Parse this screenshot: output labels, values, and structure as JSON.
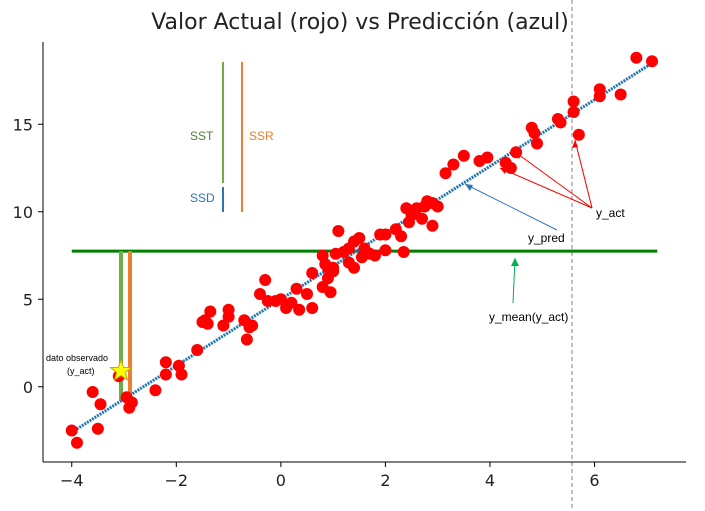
{
  "chart_data": {
    "type": "scatter",
    "title": "Valor Actual (rojo) vs Predicción (azul)",
    "xlabel": "",
    "ylabel": "",
    "xlim": [
      -4.55,
      7.75
    ],
    "ylim": [
      -4.3,
      19.7
    ],
    "xticks": [
      -4,
      -2,
      0,
      2,
      4,
      6
    ],
    "xtick_labels": [
      "−4",
      "−2",
      "0",
      "2",
      "4",
      "6"
    ],
    "yticks": [
      0,
      5,
      10,
      15
    ],
    "ytick_labels": [
      "0",
      "5",
      "10",
      "15"
    ],
    "grid": false,
    "series": [
      {
        "kind": "points",
        "color": "#ff0000",
        "points": [
          [
            -4.0,
            -2.5
          ],
          [
            -3.9,
            -3.2
          ],
          [
            -3.6,
            -0.3
          ],
          [
            -3.5,
            -2.4
          ],
          [
            -3.45,
            -1.0
          ],
          [
            -3.1,
            0.6
          ],
          [
            -2.95,
            -0.6
          ],
          [
            -2.9,
            -1.2
          ],
          [
            -2.85,
            -0.9
          ],
          [
            -2.4,
            -0.2
          ],
          [
            -2.2,
            1.4
          ],
          [
            -2.2,
            0.7
          ],
          [
            -1.95,
            1.2
          ],
          [
            -1.9,
            0.7
          ],
          [
            -1.6,
            2.1
          ],
          [
            -1.5,
            3.7
          ],
          [
            -1.45,
            3.8
          ],
          [
            -1.4,
            3.6
          ],
          [
            -1.35,
            4.3
          ],
          [
            -1.1,
            3.5
          ],
          [
            -1.0,
            4.4
          ],
          [
            -1.0,
            4.0
          ],
          [
            -0.7,
            3.8
          ],
          [
            -0.65,
            2.7
          ],
          [
            -0.6,
            3.4
          ],
          [
            -0.55,
            3.5
          ],
          [
            -0.4,
            5.3
          ],
          [
            -0.3,
            6.1
          ],
          [
            -0.25,
            4.9
          ],
          [
            -0.1,
            4.9
          ],
          [
            0.0,
            5.0
          ],
          [
            0.1,
            4.5
          ],
          [
            0.2,
            4.8
          ],
          [
            0.3,
            5.6
          ],
          [
            0.35,
            4.4
          ],
          [
            0.5,
            5.3
          ],
          [
            0.6,
            4.5
          ],
          [
            0.6,
            6.5
          ],
          [
            0.8,
            5.7
          ],
          [
            0.8,
            7.5
          ],
          [
            0.85,
            7.0
          ],
          [
            0.9,
            6.2
          ],
          [
            0.9,
            6.8
          ],
          [
            0.95,
            5.4
          ],
          [
            1.0,
            6.6
          ],
          [
            1.0,
            6.8
          ],
          [
            1.05,
            7.6
          ],
          [
            1.1,
            8.9
          ],
          [
            1.2,
            7.7
          ],
          [
            1.3,
            7.1
          ],
          [
            1.3,
            7.9
          ],
          [
            1.4,
            8.3
          ],
          [
            1.4,
            6.8
          ],
          [
            1.5,
            8.5
          ],
          [
            1.55,
            7.4
          ],
          [
            1.6,
            7.9
          ],
          [
            1.7,
            7.6
          ],
          [
            1.8,
            7.5
          ],
          [
            1.9,
            8.7
          ],
          [
            2.0,
            8.7
          ],
          [
            2.0,
            7.8
          ],
          [
            2.2,
            9.0
          ],
          [
            2.3,
            8.6
          ],
          [
            2.35,
            7.7
          ],
          [
            2.4,
            10.2
          ],
          [
            2.45,
            9.4
          ],
          [
            2.5,
            9.8
          ],
          [
            2.6,
            10.2
          ],
          [
            2.7,
            9.6
          ],
          [
            2.75,
            10.3
          ],
          [
            2.8,
            10.6
          ],
          [
            2.9,
            9.2
          ],
          [
            2.9,
            10.5
          ],
          [
            3.0,
            10.3
          ],
          [
            3.15,
            12.2
          ],
          [
            3.3,
            12.7
          ],
          [
            3.5,
            13.2
          ],
          [
            3.8,
            12.9
          ],
          [
            3.95,
            13.1
          ],
          [
            4.3,
            12.8
          ],
          [
            4.4,
            12.5
          ],
          [
            4.5,
            13.4
          ],
          [
            4.8,
            14.8
          ],
          [
            4.85,
            14.5
          ],
          [
            4.9,
            13.9
          ],
          [
            5.3,
            15.3
          ],
          [
            5.35,
            15.1
          ],
          [
            5.6,
            15.7
          ],
          [
            5.6,
            16.3
          ],
          [
            5.7,
            14.4
          ],
          [
            6.1,
            16.6
          ],
          [
            6.1,
            17.0
          ],
          [
            6.5,
            16.7
          ],
          [
            6.8,
            18.8
          ],
          [
            7.1,
            18.6
          ]
        ]
      },
      {
        "kind": "regression-line",
        "color": "#1f77b4",
        "intercept": 5.0,
        "slope": 1.9,
        "x_range": [
          -4.0,
          7.1
        ]
      },
      {
        "kind": "mean-line",
        "color": "#007f00",
        "y": 7.75,
        "x_range": [
          -4.0,
          7.2
        ]
      }
    ],
    "annotations": {
      "sst_label": "SST",
      "ssr_label": "SSR",
      "ssd_label": "SSD",
      "y_act_label": "y_act",
      "y_pred_label": "y_pred",
      "y_mean_label": "y_mean(y_act)",
      "observed_label_line1": "dato observado",
      "observed_label_line2": "(y_act)"
    }
  },
  "colors": {
    "points": "#ff0000",
    "prediction": "#1f77b4",
    "mean": "#007f00",
    "sst": "#70ad47",
    "ssr": "#ed7d31",
    "ssd": "#2e75b6",
    "star": "#ffff00",
    "dashed_line": "#808080"
  }
}
